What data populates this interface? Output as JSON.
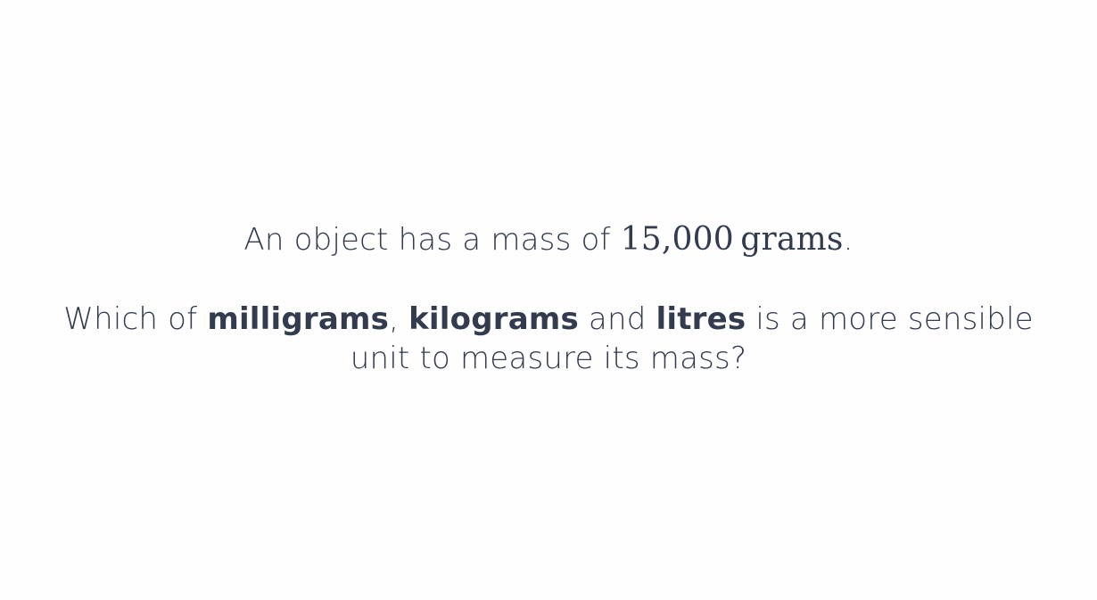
{
  "question": {
    "line1_prefix": "An object has a mass of ",
    "mass_value": "15,000",
    "mass_unit": "grams",
    "line1_suffix": ".",
    "line2_prefix": "Which of ",
    "option1": "milligrams",
    "sep1": ", ",
    "option2": "kilograms",
    "sep2": " and ",
    "option3": "litres",
    "line2_suffix": " is a more sensible unit to measure its mass?"
  }
}
